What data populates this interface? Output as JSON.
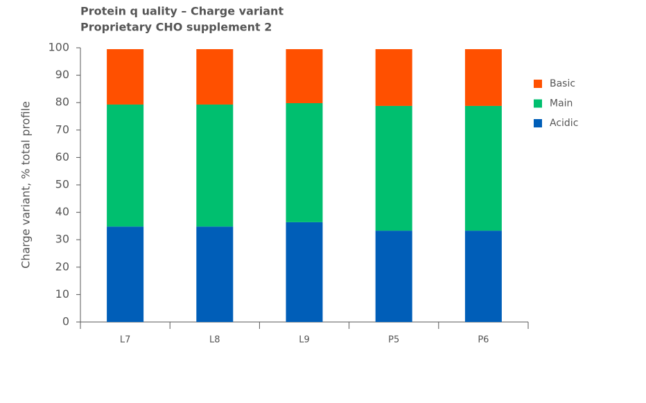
{
  "chart_data": {
    "type": "stacked-bar",
    "title": "Protein q uality – Charge variant",
    "subtitle": "Proprietary CHO supplement 2",
    "y_label": "Charge variant, % total profile",
    "categories": [
      "L7",
      "L8",
      "L9",
      "P5",
      "P6"
    ],
    "series": [
      {
        "name": "Acidic",
        "color": "#005eb8",
        "values": [
          34.8,
          34.8,
          36.4,
          33.3,
          33.3
        ]
      },
      {
        "name": "Main",
        "color": "#00bf6f",
        "values": [
          44.5,
          44.5,
          43.4,
          45.5,
          45.5
        ]
      },
      {
        "name": "Basic",
        "color": "#ff5000",
        "values": [
          20.2,
          20.2,
          19.7,
          20.7,
          20.7
        ]
      }
    ],
    "ylim": [
      0,
      100
    ],
    "yticks": [
      0,
      10,
      20,
      30,
      40,
      50,
      60,
      70,
      80,
      90,
      100
    ],
    "legend": "right"
  }
}
